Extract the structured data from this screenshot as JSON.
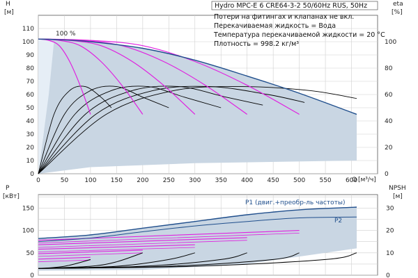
{
  "chart_data": [
    {
      "type": "line",
      "panel": "head",
      "title": "Hydro MPC-E 6 CRE64-3-2 50/60Hz RUS, 50Hz",
      "notes": [
        "Потери на фитингах и клапанах не вкл.",
        "Перекачиваемая жидкость = Вода",
        "Температура перекачиваемой жидкости = 20 °C",
        "Плотность = 998.2 кг/м³"
      ],
      "y_label": "H",
      "y_unit": "[м]",
      "y2_label": "eta",
      "y2_unit": "[%]",
      "x_label": "Q",
      "x_unit": "[м³/ч]",
      "xlim": [
        0,
        650
      ],
      "ylim": [
        0,
        120
      ],
      "y2lim": [
        0,
        120
      ],
      "x_ticks": [
        0,
        50,
        100,
        150,
        200,
        250,
        300,
        350,
        400,
        450,
        500,
        550,
        600
      ],
      "y_ticks": [
        0,
        10,
        20,
        30,
        40,
        50,
        60,
        70,
        80,
        90,
        100,
        110
      ],
      "y2_ticks": [
        0,
        20,
        40,
        60,
        80,
        100
      ],
      "speed_label": "100 %",
      "colors": {
        "envelope": "#c9d6e3",
        "envelope_edge": "#1f4e8c",
        "pump_curves": "#e020e0",
        "efficiency": "#000000",
        "max_curve": "#1f4e8c"
      },
      "max_curve": {
        "x": [
          0,
          40,
          100,
          200,
          300,
          400,
          500,
          610
        ],
        "y": [
          102,
          101.5,
          100,
          95,
          86,
          74,
          61,
          45
        ]
      },
      "pump_curves": [
        {
          "qmax": 100,
          "x": [
            0,
            20,
            40,
            60,
            80,
            100
          ],
          "y": [
            102,
            101,
            97,
            85,
            67,
            45
          ]
        },
        {
          "qmax": 200,
          "x": [
            0,
            40,
            80,
            120,
            160,
            200
          ],
          "y": [
            102,
            101,
            97,
            85,
            67,
            45
          ]
        },
        {
          "qmax": 300,
          "x": [
            0,
            60,
            120,
            180,
            240,
            300
          ],
          "y": [
            102,
            101,
            97,
            85,
            67,
            45
          ]
        },
        {
          "qmax": 400,
          "x": [
            0,
            80,
            160,
            240,
            320,
            400
          ],
          "y": [
            102,
            101,
            97,
            85,
            67,
            45
          ]
        },
        {
          "qmax": 500,
          "x": [
            0,
            100,
            200,
            300,
            400,
            500
          ],
          "y": [
            102,
            101,
            97,
            85,
            67,
            45
          ]
        }
      ],
      "efficiency_curves": [
        {
          "x": [
            0,
            30,
            60,
            90,
            120,
            140
          ],
          "y": [
            0,
            45,
            63,
            66,
            58,
            50
          ]
        },
        {
          "x": [
            0,
            50,
            100,
            150,
            200,
            250
          ],
          "y": [
            0,
            45,
            63,
            66,
            58,
            50
          ]
        },
        {
          "x": [
            0,
            70,
            140,
            210,
            280,
            350
          ],
          "y": [
            0,
            45,
            63,
            66,
            58,
            50
          ]
        },
        {
          "x": [
            0,
            90,
            180,
            270,
            360,
            430
          ],
          "y": [
            0,
            45,
            63,
            66,
            58,
            52
          ]
        },
        {
          "x": [
            0,
            110,
            220,
            330,
            440,
            510
          ],
          "y": [
            0,
            45,
            63,
            66,
            60,
            54
          ]
        },
        {
          "x": [
            0,
            130,
            260,
            390,
            520,
            610
          ],
          "y": [
            0,
            45,
            63,
            66,
            63,
            57
          ]
        }
      ]
    },
    {
      "type": "line",
      "panel": "power_npsh",
      "y_label": "P",
      "y_unit": "[кВт]",
      "y2_label": "NPSH",
      "y2_unit": "[м]",
      "xlim": [
        0,
        650
      ],
      "ylim": [
        0,
        180
      ],
      "y2lim": [
        0,
        36
      ],
      "y_ticks": [
        0,
        50,
        100,
        150
      ],
      "y2_ticks": [
        0,
        10,
        20,
        30
      ],
      "curve_labels": {
        "p1": "P1 (двиг.+преобр-ль частоты)",
        "p2": "P2"
      },
      "p1_max": {
        "x": [
          0,
          100,
          200,
          300,
          400,
          500,
          610
        ],
        "y": [
          82,
          90,
          105,
          120,
          135,
          146,
          152
        ]
      },
      "p2_max": {
        "x": [
          0,
          100,
          200,
          300,
          400,
          500,
          610
        ],
        "y": [
          75,
          83,
          97,
          110,
          120,
          128,
          130
        ]
      },
      "power_curves": [
        {
          "x": [
            0,
            100
          ],
          "y": [
            36,
            40
          ]
        },
        {
          "x": [
            0,
            200
          ],
          "y": [
            48,
            56
          ]
        },
        {
          "x": [
            0,
            300
          ],
          "y": [
            58,
            68
          ]
        },
        {
          "x": [
            0,
            400
          ],
          "y": [
            68,
            84
          ]
        },
        {
          "x": [
            0,
            500
          ],
          "y": [
            78,
            100
          ]
        }
      ],
      "npsh_curves": [
        {
          "x": [
            0,
            50,
            100
          ],
          "y": [
            3,
            4,
            7
          ]
        },
        {
          "x": [
            0,
            100,
            150,
            200
          ],
          "y": [
            3,
            4,
            6,
            10
          ]
        },
        {
          "x": [
            0,
            150,
            250,
            300
          ],
          "y": [
            3,
            4,
            7,
            10
          ]
        },
        {
          "x": [
            0,
            200,
            350,
            400
          ],
          "y": [
            3,
            4,
            7,
            10
          ]
        },
        {
          "x": [
            0,
            250,
            450,
            500
          ],
          "y": [
            3,
            4,
            7,
            10
          ]
        },
        {
          "x": [
            0,
            300,
            550,
            610
          ],
          "y": [
            3,
            4,
            7,
            10
          ]
        }
      ]
    }
  ]
}
